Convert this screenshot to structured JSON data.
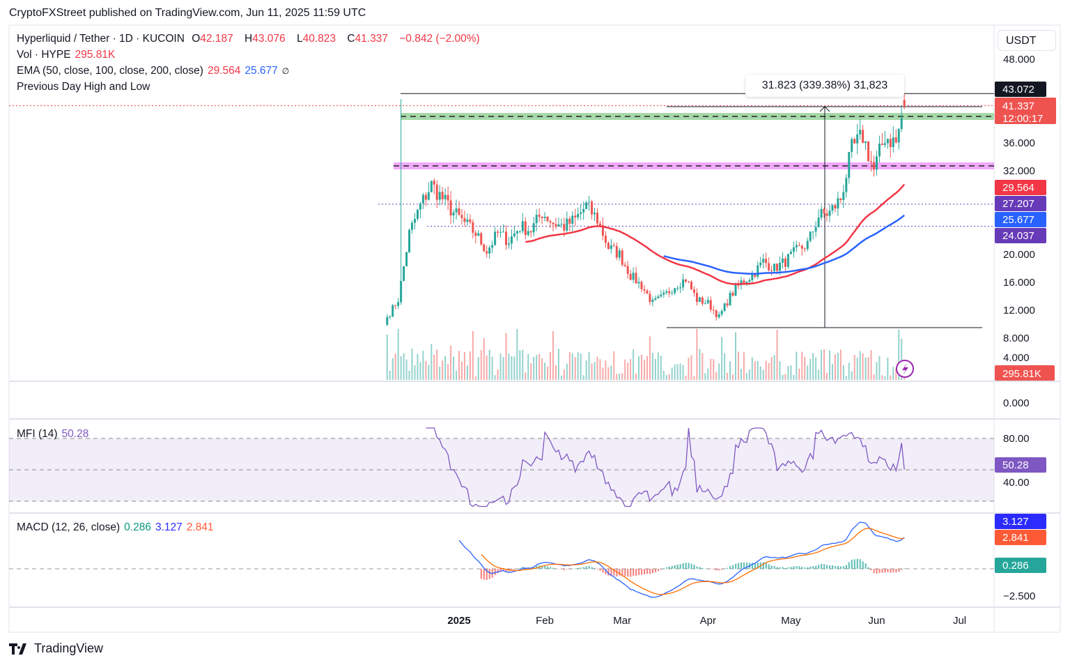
{
  "publisher": "CryptoFXStreet published on TradingView.com, Jun 11, 2025 11:59 UTC",
  "footer_brand": "TradingView",
  "legend": {
    "symbol": "Hyperliquid / Tether · 1D · KUCOIN",
    "open_label": "O",
    "open": "42.187",
    "high_label": "H",
    "high": "43.076",
    "low_label": "L",
    "low": "40.823",
    "close_label": "C",
    "close": "41.337",
    "change": "−0.842 (−2.00%)",
    "vol_label": "Vol · HYPE",
    "vol": "295.81K",
    "ema_label": "EMA (50, close, 100, close, 200, close)",
    "ema50": "29.564",
    "ema100": "25.677",
    "ema200": "∅",
    "pdhl_label": "Previous Day High and Low"
  },
  "mfi_legend": {
    "label": "MFI (14)",
    "value": "50.28"
  },
  "macd_legend": {
    "label": "MACD (12, 26, close)",
    "hist": "0.286",
    "macd": "3.127",
    "signal": "2.841"
  },
  "currency": "USDT",
  "measure_label": "31.823 (339.38%) 31,823",
  "colors": {
    "up": "#26a69a",
    "down": "#ef5350",
    "ema50": "#f23645",
    "ema100": "#2962ff",
    "green_zone": "#81c784",
    "magenta_zone": "#e040fb",
    "level_dotted": "#673ab7",
    "mfi": "#7e57c2",
    "macd": "#2962ff",
    "signal": "#ff6d00"
  },
  "chart_data": {
    "type": "candlestick",
    "price_axis": {
      "ticks": [
        "48.000",
        "36.000",
        "32.000",
        "20.000",
        "16.000",
        "12.000",
        "8.000",
        "4.000",
        "0.000"
      ],
      "range": [
        0,
        48
      ]
    },
    "x_ticks": [
      "2025",
      "Feb",
      "Mar",
      "Apr",
      "May",
      "Jun",
      "Jul"
    ],
    "closes": [
      [
        "2024-12-06",
        11
      ],
      [
        "2024-12-10",
        13.5
      ],
      [
        "2024-12-14",
        23
      ],
      [
        "2024-12-18",
        27
      ],
      [
        "2024-12-22",
        30
      ],
      [
        "2024-12-26",
        28
      ],
      [
        "2024-12-30",
        26
      ],
      [
        "2025-01-03",
        24.5
      ],
      [
        "2025-01-07",
        23
      ],
      [
        "2025-01-11",
        20.5
      ],
      [
        "2025-01-15",
        23
      ],
      [
        "2025-01-19",
        22
      ],
      [
        "2025-01-23",
        24
      ],
      [
        "2025-01-27",
        23.5
      ],
      [
        "2025-01-31",
        26
      ],
      [
        "2025-02-04",
        24.5
      ],
      [
        "2025-02-08",
        24
      ],
      [
        "2025-02-12",
        25
      ],
      [
        "2025-02-16",
        27
      ],
      [
        "2025-02-20",
        25
      ],
      [
        "2025-02-24",
        21
      ],
      [
        "2025-02-28",
        20
      ],
      [
        "2025-03-04",
        17
      ],
      [
        "2025-03-08",
        15.5
      ],
      [
        "2025-03-12",
        13
      ],
      [
        "2025-03-16",
        14
      ],
      [
        "2025-03-20",
        15.5
      ],
      [
        "2025-03-24",
        16.5
      ],
      [
        "2025-03-28",
        13.5
      ],
      [
        "2025-04-01",
        13
      ],
      [
        "2025-04-05",
        11
      ],
      [
        "2025-04-09",
        14
      ],
      [
        "2025-04-13",
        16
      ],
      [
        "2025-04-17",
        17
      ],
      [
        "2025-04-21",
        19
      ],
      [
        "2025-04-25",
        18
      ],
      [
        "2025-04-29",
        19
      ],
      [
        "2025-05-03",
        20.5
      ],
      [
        "2025-05-07",
        21.5
      ],
      [
        "2025-05-11",
        25.5
      ],
      [
        "2025-05-15",
        26
      ],
      [
        "2025-05-19",
        28
      ],
      [
        "2025-05-23",
        35
      ],
      [
        "2025-05-27",
        37
      ],
      [
        "2025-05-31",
        32
      ],
      [
        "2025-06-04",
        37
      ],
      [
        "2025-06-08",
        36
      ],
      [
        "2025-06-11",
        41.337
      ]
    ],
    "notable_wick": {
      "date": "2024-12-11",
      "high": 42.3
    },
    "levels": {
      "high_line": "43.072",
      "last_price": "41.337",
      "countdown": "12:00:17",
      "green_zone": 39.8,
      "magenta_zone": 32.7,
      "dotted_1": "27.207",
      "dotted_2": "24.037",
      "ema50": "29.564",
      "ema100": "25.677",
      "volume": "295.81K",
      "measure_top": 41.2,
      "measure_bottom": 9.5
    },
    "mfi_axis": [
      "80.00",
      "40.00"
    ],
    "mfi_value": "50.28",
    "macd_axis": [
      "−2.500"
    ],
    "macd_values": {
      "hist": "0.286",
      "macd": "3.127",
      "signal": "2.841"
    }
  }
}
